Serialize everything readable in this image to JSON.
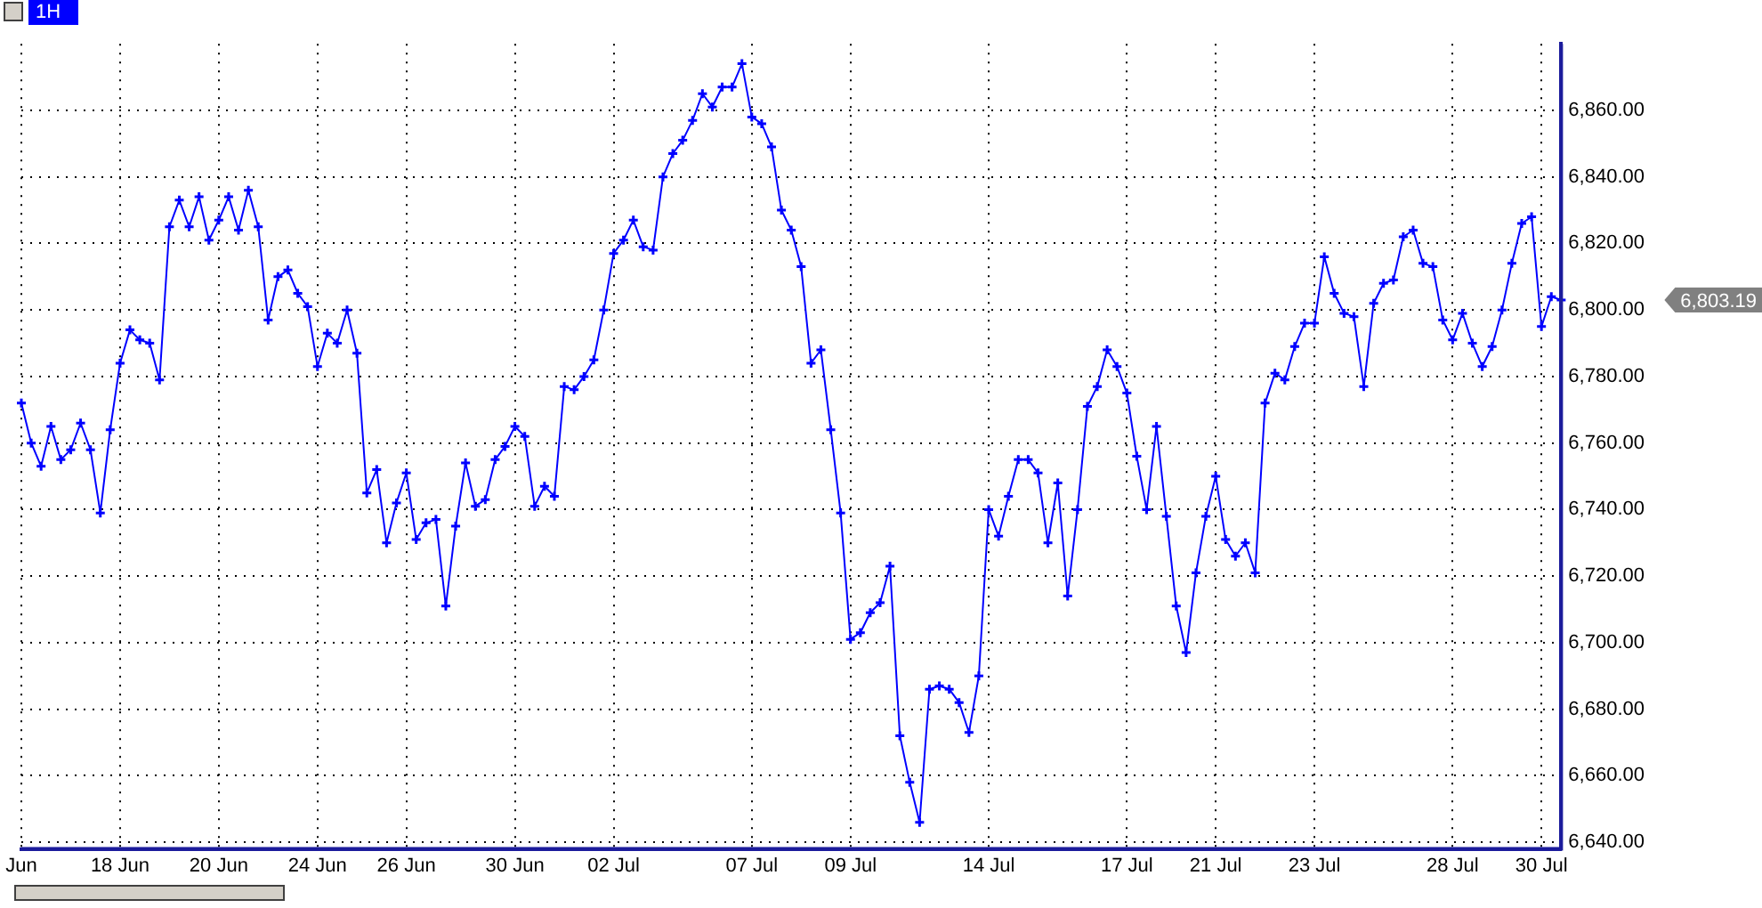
{
  "chart_data": {
    "type": "line",
    "title": "1H",
    "categories": [
      "Jun",
      null,
      null,
      null,
      null,
      null,
      null,
      null,
      null,
      null,
      "18 Jun",
      null,
      null,
      null,
      null,
      null,
      null,
      null,
      null,
      null,
      "20 Jun",
      null,
      null,
      null,
      null,
      null,
      null,
      null,
      null,
      null,
      "24 Jun",
      null,
      null,
      null,
      null,
      null,
      null,
      null,
      null,
      "26 Jun",
      null,
      null,
      null,
      null,
      null,
      null,
      null,
      null,
      null,
      null,
      "30 Jun",
      null,
      null,
      null,
      null,
      null,
      null,
      null,
      null,
      null,
      "02 Jul",
      null,
      null,
      null,
      null,
      null,
      null,
      null,
      null,
      null,
      null,
      null,
      null,
      null,
      "07 Jul",
      null,
      null,
      null,
      null,
      null,
      null,
      null,
      null,
      null,
      "09 Jul",
      null,
      null,
      null,
      null,
      null,
      null,
      null,
      null,
      null,
      null,
      null,
      null,
      null,
      "14 Jul",
      null,
      null,
      null,
      null,
      null,
      null,
      null,
      null,
      null,
      null,
      null,
      null,
      null,
      "17 Jul",
      null,
      null,
      null,
      null,
      null,
      null,
      null,
      null,
      "21 Jul",
      null,
      null,
      null,
      null,
      null,
      null,
      null,
      null,
      null,
      "23 Jul",
      null,
      null,
      null,
      null,
      null,
      null,
      null,
      null,
      null,
      null,
      null,
      null,
      null,
      "28 Jul",
      null,
      null,
      null,
      null,
      null,
      null,
      null,
      null,
      "30 Jul",
      null,
      null
    ],
    "series": [
      {
        "color": "#0000ff",
        "values": [
          6772,
          6760,
          6753,
          6765,
          6755,
          6758,
          6766,
          6758,
          6739,
          6764,
          6784,
          6794,
          6791,
          6790,
          6779,
          6825,
          6833,
          6825,
          6834,
          6821,
          6827,
          6834,
          6824,
          6836,
          6825,
          6797,
          6810,
          6812,
          6805,
          6801,
          6783,
          6793,
          6790,
          6800,
          6787,
          6745,
          6752,
          6730,
          6742,
          6751,
          6731,
          6736,
          6737,
          6711,
          6735,
          6754,
          6741,
          6743,
          6755,
          6759,
          6765,
          6762,
          6741,
          6747,
          6744,
          6777,
          6776,
          6780,
          6785,
          6800,
          6817,
          6821,
          6827,
          6819,
          6818,
          6840,
          6847,
          6851,
          6857,
          6865,
          6861,
          6867,
          6867,
          6874,
          6858,
          6856,
          6849,
          6830,
          6824,
          6813,
          6784,
          6788,
          6764,
          6739,
          6701,
          6703,
          6709,
          6712,
          6723,
          6672,
          6658,
          6646,
          6686,
          6687,
          6686,
          6682,
          6673,
          6690,
          6740,
          6732,
          6744,
          6755,
          6755,
          6751,
          6730,
          6748,
          6714,
          6740,
          6771,
          6777,
          6788,
          6783,
          6775,
          6756,
          6740,
          6765,
          6738,
          6711,
          6697,
          6721,
          6738,
          6750,
          6731,
          6726,
          6730,
          6721,
          6772,
          6781,
          6779,
          6789,
          6796,
          6796,
          6816,
          6805,
          6799,
          6798,
          6777,
          6802,
          6808,
          6809,
          6822,
          6824,
          6814,
          6813,
          6797,
          6791,
          6799,
          6790,
          6783,
          6789,
          6800,
          6814,
          6826,
          6828,
          6795,
          6804,
          6803
        ]
      }
    ],
    "ylim": [
      6638,
      6880
    ],
    "yticks": [
      {
        "value": 6640,
        "label": "6,640.00"
      },
      {
        "value": 6660,
        "label": "6,660.00"
      },
      {
        "value": 6680,
        "label": "6,680.00"
      },
      {
        "value": 6700,
        "label": "6,700.00"
      },
      {
        "value": 6720,
        "label": "6,720.00"
      },
      {
        "value": 6740,
        "label": "6,740.00"
      },
      {
        "value": 6760,
        "label": "6,760.00"
      },
      {
        "value": 6780,
        "label": "6,780.00"
      },
      {
        "value": 6800,
        "label": "6,800.00"
      },
      {
        "value": 6820,
        "label": "6,820.00"
      },
      {
        "value": 6840,
        "label": "6,840.00"
      },
      {
        "value": 6860,
        "label": "6,860.00"
      }
    ],
    "annotations": [
      "6,803.19"
    ],
    "grid": true,
    "legend": false,
    "marker": "cross",
    "line_style": "solid"
  }
}
